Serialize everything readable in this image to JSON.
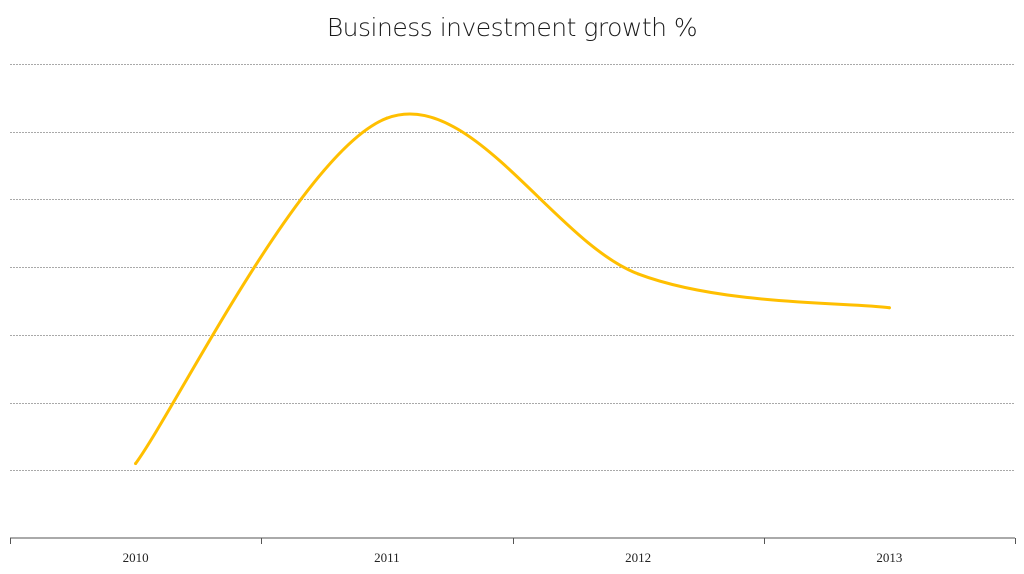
{
  "chart_data": {
    "type": "line",
    "title": "Business investment growth %",
    "xlabel": "",
    "ylabel": "",
    "categories": [
      "2010",
      "2011",
      "2012",
      "2013"
    ],
    "series": [
      {
        "values": [
          1.1,
          6.2,
          3.9,
          3.4
        ]
      }
    ],
    "ylim": [
      0,
      7
    ],
    "ytick_step": 1,
    "y_tick_labels_shown": false,
    "grid": "horizontal",
    "legend": "none",
    "line_color": "#FFBF00",
    "smooth": true
  }
}
